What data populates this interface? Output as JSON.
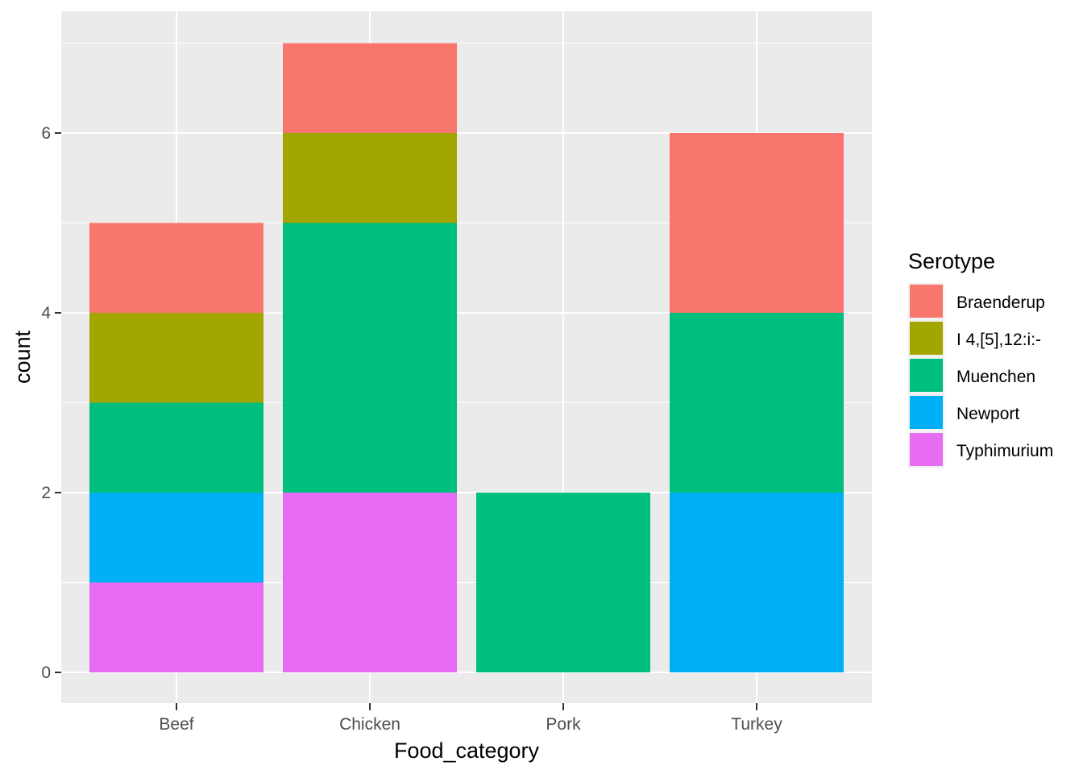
{
  "chart_data": {
    "type": "bar",
    "stacked": true,
    "title": "",
    "xlabel": "Food_category",
    "ylabel": "count",
    "categories": [
      "Beef",
      "Chicken",
      "Pork",
      "Turkey"
    ],
    "ylim": [
      0,
      7.35
    ],
    "yticks": [
      0,
      2,
      4,
      6
    ],
    "grid": true,
    "legend": {
      "title": "Serotype",
      "position": "right"
    },
    "series": [
      {
        "name": "Braenderup",
        "color": "#F8766D",
        "values": [
          1,
          1,
          0,
          2
        ]
      },
      {
        "name": "I 4,[5],12:i:-",
        "color": "#A3A500",
        "values": [
          1,
          1,
          0,
          0
        ]
      },
      {
        "name": "Muenchen",
        "color": "#00BF7D",
        "values": [
          1,
          3,
          2,
          2
        ]
      },
      {
        "name": "Newport",
        "color": "#00B0F6",
        "values": [
          1,
          0,
          0,
          2
        ]
      },
      {
        "name": "Typhimurium",
        "color": "#E76BF3",
        "values": [
          1,
          2,
          0,
          0
        ]
      }
    ]
  }
}
